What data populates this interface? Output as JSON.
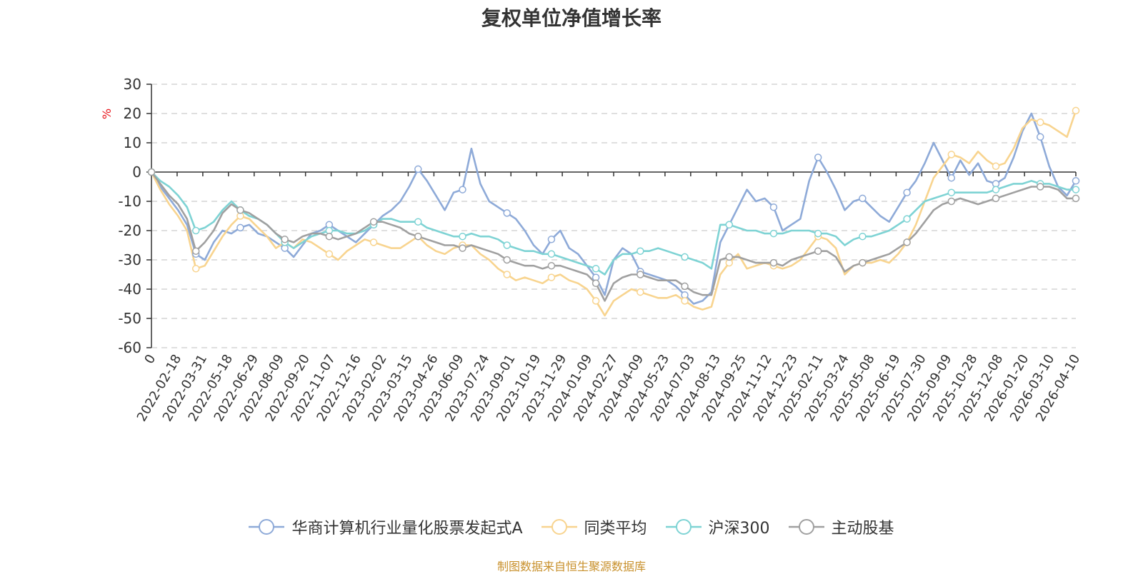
{
  "page": {
    "title": "复权单位净值增长率",
    "source": "制图数据来自恒生聚源数据库"
  },
  "chart_data": {
    "type": "line",
    "title": "复权单位净值增长率",
    "ylabel": "%",
    "xlabel": "",
    "ylim": [
      -60,
      30
    ],
    "yticks": [
      30,
      20,
      10,
      0,
      -10,
      -20,
      -30,
      -40,
      -50,
      -60
    ],
    "grid": true,
    "legend_position": "bottom",
    "x_ticks": [
      "0",
      "2022-02-18",
      "2022-03-31",
      "2022-05-18",
      "2022-06-29",
      "2022-08-09",
      "2022-09-20",
      "2022-11-07",
      "2022-12-16",
      "2023-02-02",
      "2023-03-15",
      "2023-04-26",
      "2023-06-09",
      "2023-07-24",
      "2023-09-01",
      "2023-10-19",
      "2023-11-29",
      "2024-01-09",
      "2024-02-27",
      "2024-04-09",
      "2024-05-23",
      "2024-07-03",
      "2024-08-13",
      "2024-09-25",
      "2024-11-12",
      "2024-12-23",
      "2025-02-11",
      "2025-03-24",
      "2025-05-08",
      "2025-06-19",
      "2025-07-30",
      "2025-09-09",
      "2025-10-28",
      "2025-12-08",
      "2026-01-20",
      "2026-03-10",
      "2026-04-10"
    ],
    "series": [
      {
        "name": "华商计算机行业量化股票发起式A",
        "color": "#8eaad8",
        "values": [
          0,
          -5,
          -9,
          -13,
          -18,
          -28,
          -30,
          -24,
          -20,
          -21,
          -19,
          -18,
          -21,
          -22,
          -24,
          -26,
          -29,
          -25,
          -21,
          -20,
          -18,
          -20,
          -22,
          -24,
          -21,
          -18,
          -15,
          -13,
          -10,
          -5,
          1,
          -3,
          -8,
          -13,
          -7,
          -6,
          8,
          -4,
          -10,
          -12,
          -14,
          -16,
          -20,
          -25,
          -28,
          -23,
          -20,
          -26,
          -28,
          -32,
          -36,
          -42,
          -30,
          -26,
          -28,
          -34,
          -35,
          -36,
          -37,
          -39,
          -42,
          -45,
          -44,
          -41,
          -24,
          -18,
          -12,
          -6,
          -10,
          -9,
          -12,
          -20,
          -18,
          -16,
          -3,
          5,
          0,
          -6,
          -13,
          -10,
          -9,
          -12,
          -15,
          -17,
          -12,
          -7,
          -3,
          3,
          10,
          4,
          -2,
          4,
          -1,
          3,
          -3,
          -4,
          -2,
          5,
          14,
          20,
          12,
          2,
          -5,
          -8,
          -3
        ]
      },
      {
        "name": "同类平均",
        "color": "#f8d48f",
        "values": [
          0,
          -6,
          -11,
          -15,
          -20,
          -33,
          -32,
          -27,
          -22,
          -18,
          -15,
          -16,
          -19,
          -22,
          -26,
          -24,
          -26,
          -23,
          -24,
          -26,
          -28,
          -30,
          -27,
          -25,
          -23,
          -24,
          -25,
          -26,
          -26,
          -24,
          -22,
          -25,
          -27,
          -28,
          -26,
          -25,
          -25,
          -28,
          -30,
          -33,
          -35,
          -37,
          -36,
          -37,
          -38,
          -36,
          -35,
          -37,
          -38,
          -40,
          -44,
          -49,
          -44,
          -42,
          -40,
          -41,
          -42,
          -43,
          -43,
          -42,
          -44,
          -46,
          -47,
          -46,
          -35,
          -31,
          -28,
          -33,
          -32,
          -31,
          -32,
          -33,
          -32,
          -30,
          -26,
          -22,
          -23,
          -26,
          -35,
          -32,
          -31,
          -31,
          -30,
          -31,
          -28,
          -24,
          -18,
          -10,
          -2,
          2,
          6,
          5,
          3,
          7,
          4,
          2,
          3,
          8,
          15,
          18,
          17,
          16,
          14,
          12,
          21
        ]
      },
      {
        "name": "沪深300",
        "color": "#7ed3d4",
        "values": [
          0,
          -3,
          -5,
          -8,
          -12,
          -20,
          -19,
          -17,
          -13,
          -10,
          -13,
          -15,
          -16,
          -18,
          -21,
          -24,
          -26,
          -24,
          -22,
          -21,
          -20,
          -20,
          -21,
          -21,
          -20,
          -18,
          -16,
          -16,
          -17,
          -17,
          -17,
          -19,
          -20,
          -21,
          -22,
          -22,
          -21,
          -22,
          -22,
          -23,
          -25,
          -26,
          -27,
          -27,
          -28,
          -28,
          -29,
          -30,
          -31,
          -32,
          -33,
          -35,
          -30,
          -28,
          -28,
          -27,
          -27,
          -26,
          -27,
          -28,
          -29,
          -30,
          -31,
          -33,
          -18,
          -18,
          -19,
          -20,
          -20,
          -21,
          -21,
          -21,
          -20,
          -20,
          -20,
          -21,
          -21,
          -22,
          -25,
          -23,
          -22,
          -22,
          -21,
          -20,
          -18,
          -16,
          -13,
          -10,
          -9,
          -8,
          -7,
          -7,
          -7,
          -7,
          -7,
          -6,
          -5,
          -4,
          -4,
          -3,
          -4,
          -4,
          -5,
          -6,
          -6
        ]
      },
      {
        "name": "主动股基",
        "color": "#a0a0a0",
        "values": [
          0,
          -4,
          -8,
          -11,
          -16,
          -27,
          -24,
          -20,
          -14,
          -11,
          -13,
          -14,
          -16,
          -18,
          -21,
          -23,
          -24,
          -22,
          -21,
          -21,
          -22,
          -23,
          -22,
          -21,
          -19,
          -17,
          -17,
          -18,
          -19,
          -21,
          -22,
          -23,
          -24,
          -25,
          -25,
          -26,
          -25,
          -26,
          -27,
          -28,
          -30,
          -31,
          -32,
          -32,
          -33,
          -32,
          -32,
          -33,
          -34,
          -35,
          -38,
          -44,
          -38,
          -36,
          -35,
          -35,
          -36,
          -37,
          -37,
          -37,
          -39,
          -41,
          -42,
          -42,
          -30,
          -29,
          -29,
          -30,
          -31,
          -31,
          -31,
          -32,
          -30,
          -29,
          -28,
          -27,
          -27,
          -29,
          -34,
          -32,
          -31,
          -30,
          -29,
          -28,
          -26,
          -24,
          -21,
          -17,
          -13,
          -11,
          -10,
          -9,
          -10,
          -11,
          -10,
          -9,
          -8,
          -7,
          -6,
          -5,
          -5,
          -5,
          -6,
          -9,
          -9
        ]
      }
    ]
  }
}
